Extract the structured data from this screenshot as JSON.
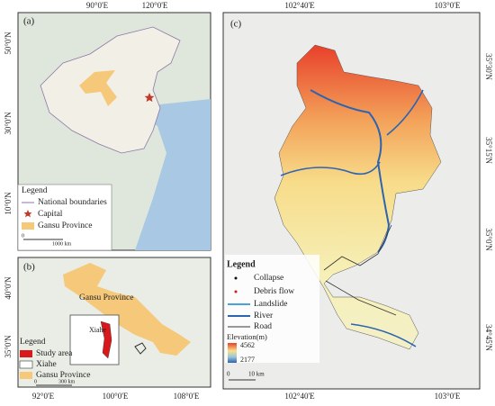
{
  "panels": {
    "a": {
      "label": "(a)",
      "lon_labels": [
        "90°0'E",
        "120°0'E"
      ],
      "lat_labels": [
        "50°0'N",
        "30°0'N",
        "10°0'N"
      ],
      "legend": {
        "title": "Legend",
        "items": [
          "National boundaries",
          "Capital",
          "Gansu Province"
        ]
      },
      "scale": [
        "0",
        "1000 km"
      ]
    },
    "b": {
      "label": "(b)",
      "lon_labels": [
        "92°0'E",
        "100°0'E",
        "108°0'E"
      ],
      "lat_labels": [
        "40°0'N",
        "35°0'N"
      ],
      "map_labels": [
        "Gansu Province",
        "Xiahe"
      ],
      "legend": {
        "title": "Legend",
        "items": [
          "Study area",
          "Xiahe",
          "Gansu Province"
        ]
      },
      "scale": [
        "0",
        "300 km"
      ]
    },
    "c": {
      "label": "(c)",
      "lon_labels": [
        "102°40'E",
        "103°0'E"
      ],
      "lat_labels": [
        "35°30'N",
        "35°15'N",
        "35°0'N",
        "34°45'N"
      ],
      "legend": {
        "title": "Legend",
        "items": [
          "Collapse",
          "Debris flow",
          "Landslide",
          "River",
          "Road"
        ],
        "elevation_title": "Elevation(m)",
        "elevation_max": 4562,
        "elevation_min": 2177
      },
      "scale": [
        "0",
        "10 km"
      ]
    }
  }
}
